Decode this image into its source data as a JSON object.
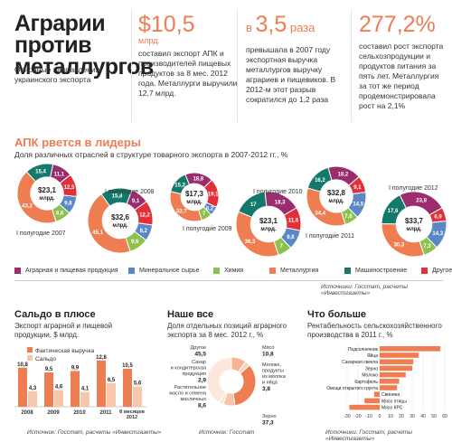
{
  "header": {
    "title": "Аграрии против металлургов",
    "subtitle": "Основные направления украинского экспорта"
  },
  "kpis": [
    {
      "prefix": "$",
      "value": "10,5",
      "unit": "млрд.",
      "text": "составил экспорт АПК и производителей пищевых продуктов за 8 мес. 2012 года. Металлурги выручили 12,7 млрд."
    },
    {
      "prefix": "в ",
      "value": "3,5",
      "unit": " раза",
      "text": "превышала в 2007 году экспортная выручка металлургов выручку аграриев и пищевиков. В 2012-м этот разрыв сократился до 1,2 раза"
    },
    {
      "prefix": "",
      "value": "277,2%",
      "unit": "",
      "text": "составил рост экспорта сельхозпродукции и продуктов питания за пять лет. Металлургия за тот же период продемонстрировала рост на 2,1%"
    }
  ],
  "section_apk": {
    "title": "АПК рвется в лидеры",
    "subtitle": "Доля различных отраслей в структуре товарного экспорта в 2007-2012 гг., %",
    "source": "Источники: Госстат, расчеты «Инвестгазеты»"
  },
  "legend": [
    {
      "name": "Аграрная и пищевая продукция",
      "color": "#9b2c6e"
    },
    {
      "name": "Минеральное сырье",
      "color": "#5b87c6"
    },
    {
      "name": "Химия",
      "color": "#8cc14c"
    },
    {
      "name": "Металлургия",
      "color": "#ef7d52"
    },
    {
      "name": "Машиностроение",
      "color": "#137a6b"
    },
    {
      "name": "Другое",
      "color": "#e0303a"
    }
  ],
  "chart_data": [
    {
      "type": "pie",
      "title": "АПК рвется в лидеры",
      "categories": [
        "Аграрная и пищевая продукция",
        "Минеральное сырье",
        "Химия",
        "Металлургия",
        "Машиностроение",
        "Другое"
      ],
      "donuts": [
        {
          "label": "I полугодие 2007",
          "center_value": "$23,1",
          "center_unit": "млрд.",
          "values": [
            11.1,
            9.8,
            8.6,
            43.2,
            15.4,
            12.5
          ]
        },
        {
          "label": "I полугодие 2008",
          "center_value": "$32,6",
          "center_unit": "млрд.",
          "values": [
            9.1,
            8.2,
            9.6,
            45.1,
            15.8,
            12.2
          ]
        },
        {
          "label": "I полугодие 2009",
          "center_value": "$17,3",
          "center_unit": "млрд.",
          "values": [
            18.8,
            6.2,
            7.0,
            33.7,
            15.2,
            19.1
          ]
        },
        {
          "label": "I полугодие 2010",
          "center_value": "$23,1",
          "center_unit": "млрд.",
          "values": [
            18.3,
            9.8,
            7.0,
            36.3,
            17.0,
            11.6
          ]
        },
        {
          "label": "I полугодие 2011",
          "center_value": "$32,8",
          "center_unit": "млрд.",
          "values": [
            18.2,
            14.5,
            7.6,
            34.4,
            16.2,
            9.1
          ]
        },
        {
          "label": "I полугодие 2012",
          "center_value": "$33,7",
          "center_unit": "млрд.",
          "values": [
            23.8,
            14.3,
            7.3,
            30.3,
            17.6,
            6.9
          ]
        }
      ]
    },
    {
      "type": "bar",
      "title": "Сальдо в плюсе",
      "subtitle": "Экспорт аграрной и пищевой продукции, $ млрд.",
      "categories": [
        "2008",
        "2009",
        "2010",
        "2011",
        "8 месяцев 2012"
      ],
      "series": [
        {
          "name": "Фактическая выручка",
          "values": [
            10.8,
            9.5,
            9.9,
            12.8,
            10.5
          ],
          "color": "#ef7d52"
        },
        {
          "name": "Сальдо",
          "values": [
            4.3,
            4.6,
            4.1,
            6.5,
            5.6
          ],
          "color": "#f6c6ad"
        }
      ],
      "source": "Источник: Госстат, расчеты «Инвестгазеты»"
    },
    {
      "type": "pie",
      "title": "Наше все",
      "subtitle": "Доля отдельных позиций аграрного экспорта за 8 мес. 2012 г., %",
      "categories": [
        "Мясо",
        "Молоко, продукты из молока и яйца",
        "Зерно",
        "Растительное масло и семена масличных",
        "Сахар и кондитерская продукция",
        "Другое"
      ],
      "values": [
        10.8,
        3.8,
        37.3,
        8.6,
        2.9,
        45.5
      ],
      "source": "Источник: Госстат"
    },
    {
      "type": "bar",
      "orientation": "horizontal",
      "title": "Что больше",
      "subtitle": "Рентабельность сельскохозяйственного производства в 2011 г., %",
      "categories": [
        "Подсолнечник",
        "Яйца",
        "Сахарная свекла",
        "Зерно",
        "Молоко",
        "Картофель",
        "Овощи открытого грунта",
        "Свинина",
        "Мясо птицы",
        "Мясо КРС"
      ],
      "values": [
        56,
        36,
        31,
        30,
        24,
        18,
        16,
        -5,
        -14,
        -28
      ],
      "xlim": [
        -30,
        60
      ],
      "ticks": [
        -30,
        -20,
        -10,
        0,
        10,
        20,
        30,
        40,
        50,
        60
      ],
      "source": "Источники: Госстат, расчеты «Инвестгазеты»"
    }
  ],
  "saldo": {
    "title": "Сальдо в плюсе",
    "subtitle": "Экспорт аграрной и пищевой продукции, $ млрд.",
    "legend_actual": "Фактическая выручка",
    "legend_saldo": "Сальдо",
    "source": "Источник: Госстат, расчеты «Инвестгазеты»"
  },
  "nashe": {
    "title": "Наше все",
    "subtitle": "Доля отдельных позиций аграрного экспорта за 8 мес. 2012 г., %",
    "source": "Источник: Госстат"
  },
  "chto": {
    "title": "Что больше",
    "subtitle": "Рентабельность сельскохозяйственного производства в 2011 г., %",
    "source": "Источники: Госстат, расчеты «Инвестгазеты»"
  }
}
